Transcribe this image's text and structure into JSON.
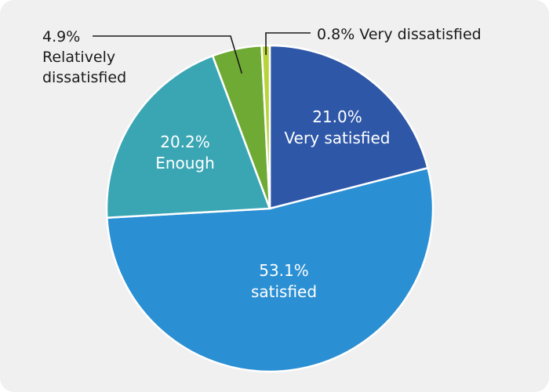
{
  "chart_data": {
    "type": "pie",
    "start_angle_deg": 0,
    "direction": "clockwise",
    "slices": [
      {
        "label": "Very satisfied",
        "value": 21.0,
        "value_label": "21.0%",
        "color": "#2e57a8",
        "label_position": "inside"
      },
      {
        "label": "satisfied",
        "value": 53.1,
        "value_label": "53.1%",
        "color": "#2b8fd3",
        "label_position": "inside"
      },
      {
        "label": "Enough",
        "value": 20.2,
        "value_label": "20.2%",
        "color": "#3aa6b4",
        "label_position": "inside"
      },
      {
        "label": "Relatively dissatisfied",
        "value": 4.9,
        "value_label": "4.9%",
        "color": "#6faa34",
        "label_position": "outside-left"
      },
      {
        "label": "Very dissatisfied",
        "value": 0.8,
        "value_label": "0.8%",
        "color": "#b8d43a",
        "label_position": "outside-right"
      }
    ],
    "title": "",
    "legend": "none",
    "background": "#f0f0f0"
  }
}
